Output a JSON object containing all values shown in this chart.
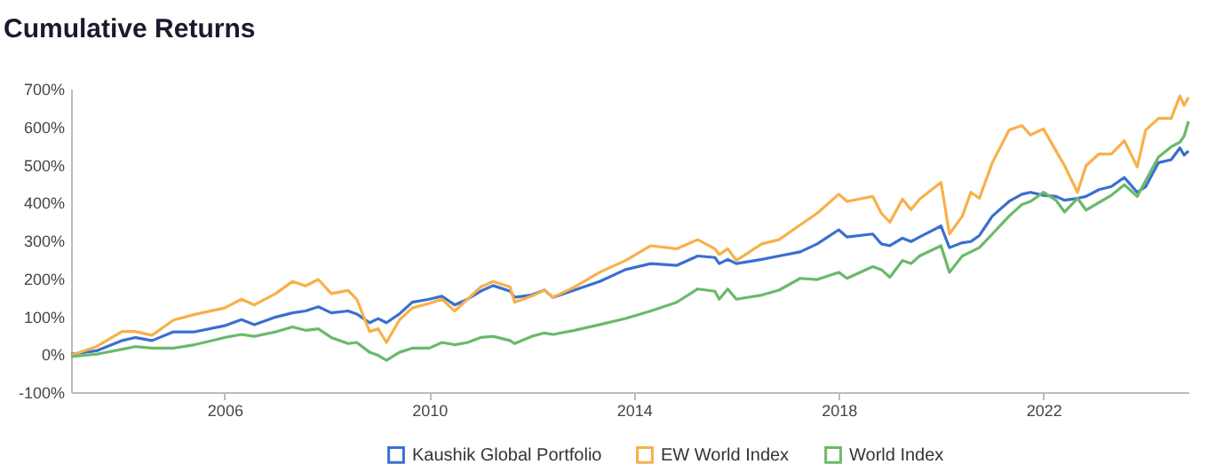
{
  "chart_data": {
    "type": "line",
    "title": "Cumulative Returns",
    "legend": "bottom",
    "x": [
      "2003-01",
      "2003-07",
      "2004-01",
      "2004-04",
      "2004-08",
      "2005-01",
      "2005-06",
      "2006-01",
      "2006-05",
      "2006-08",
      "2007-01",
      "2007-05",
      "2007-08",
      "2007-11",
      "2008-02",
      "2008-06",
      "2008-08",
      "2008-11",
      "2009-01",
      "2009-03",
      "2009-06",
      "2009-09",
      "2010-01",
      "2010-04",
      "2010-07",
      "2010-10",
      "2011-01",
      "2011-04",
      "2011-08",
      "2011-09",
      "2012-01",
      "2012-04",
      "2012-06",
      "2012-11",
      "2013-05",
      "2013-11",
      "2014-05",
      "2014-11",
      "2015-04",
      "2015-08",
      "2015-09",
      "2015-11",
      "2016-01",
      "2016-07",
      "2016-11",
      "2017-04",
      "2017-08",
      "2018-01",
      "2018-03",
      "2018-09",
      "2018-11",
      "2019-01",
      "2019-04",
      "2019-06",
      "2019-08",
      "2020-01",
      "2020-03",
      "2020-06",
      "2020-08",
      "2020-10",
      "2021-01",
      "2021-05",
      "2021-08",
      "2021-10",
      "2022-01",
      "2022-04",
      "2022-06",
      "2022-09",
      "2022-11",
      "2023-02",
      "2023-05",
      "2023-08",
      "2023-11",
      "2024-01",
      "2024-04",
      "2024-07",
      "2024-09",
      "2024-10",
      "2024-11"
    ],
    "series": [
      {
        "name": "Kaushik Global Portfolio",
        "color": "#3a6fd0",
        "values": [
          0,
          9,
          36,
          44,
          36,
          59,
          59,
          75,
          91,
          78,
          98,
          109,
          114,
          125,
          109,
          114,
          106,
          83,
          94,
          83,
          106,
          137,
          145,
          153,
          130,
          145,
          166,
          181,
          166,
          150,
          156,
          169,
          150,
          169,
          192,
          223,
          239,
          234,
          259,
          255,
          239,
          250,
          239,
          250,
          259,
          270,
          291,
          328,
          309,
          317,
          291,
          286,
          306,
          297,
          309,
          338,
          281,
          294,
          297,
          313,
          364,
          403,
          422,
          427,
          419,
          416,
          406,
          411,
          416,
          434,
          442,
          466,
          427,
          442,
          505,
          513,
          544,
          525,
          536
        ]
      },
      {
        "name": "EW World Index",
        "color": "#f8b04a",
        "values": [
          -3,
          20,
          60,
          60,
          50,
          90,
          105,
          122,
          145,
          130,
          160,
          192,
          180,
          197,
          160,
          168,
          145,
          60,
          67,
          31,
          90,
          122,
          134,
          145,
          114,
          145,
          177,
          192,
          177,
          137,
          153,
          169,
          150,
          177,
          216,
          247,
          286,
          278,
          302,
          278,
          263,
          278,
          247,
          291,
          302,
          341,
          372,
          422,
          403,
          416,
          372,
          348,
          409,
          381,
          409,
          453,
          317,
          364,
          427,
          411,
          505,
          591,
          603,
          578,
          594,
          536,
          497,
          427,
          497,
          528,
          528,
          563,
          494,
          591,
          622,
          622,
          681,
          656,
          677
        ]
      },
      {
        "name": "World Index",
        "color": "#6ab96a",
        "values": [
          -6,
          0,
          13,
          20,
          16,
          16,
          25,
          44,
          52,
          47,
          59,
          72,
          63,
          67,
          44,
          28,
          31,
          5,
          -3,
          -16,
          5,
          16,
          16,
          31,
          25,
          31,
          44,
          47,
          36,
          28,
          47,
          56,
          52,
          63,
          78,
          94,
          114,
          137,
          172,
          166,
          145,
          172,
          145,
          156,
          169,
          200,
          197,
          216,
          200,
          231,
          223,
          203,
          247,
          239,
          259,
          286,
          216,
          259,
          270,
          281,
          317,
          364,
          395,
          403,
          427,
          406,
          375,
          411,
          380,
          400,
          419,
          447,
          416,
          458,
          520,
          547,
          559,
          575,
          614
        ]
      }
    ],
    "xlim": [
      "2003-01",
      "2024-11"
    ],
    "xticks": [
      "2006",
      "2010",
      "2014",
      "2018",
      "2022"
    ],
    "ylim": [
      -100,
      700
    ],
    "yticks": [
      {
        "value": -100,
        "label": "-100%"
      },
      {
        "value": 0,
        "label": "0%"
      },
      {
        "value": 100,
        "label": "100%"
      },
      {
        "value": 200,
        "label": "200%"
      },
      {
        "value": 300,
        "label": "300%"
      },
      {
        "value": 400,
        "label": "400%"
      },
      {
        "value": 500,
        "label": "500%"
      },
      {
        "value": 600,
        "label": "600%"
      },
      {
        "value": 700,
        "label": "700%"
      }
    ]
  }
}
